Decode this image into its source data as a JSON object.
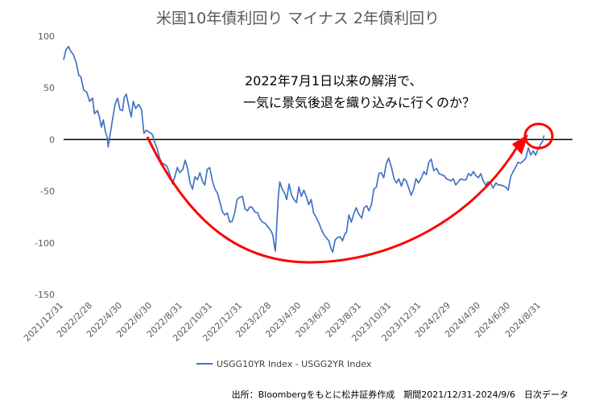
{
  "chart_data": {
    "type": "line",
    "title": "米国10年債利回り マイナス 2年債利回り",
    "xlabel": "",
    "ylabel": "",
    "ylim": [
      -150,
      100
    ],
    "y_ticks": [
      100,
      50,
      0,
      -50,
      -100,
      -150
    ],
    "x_range": [
      "2021/12/31",
      "2024/9/6"
    ],
    "x_tick_labels": [
      "2021/12/31",
      "2022/2/28",
      "2022/4/30",
      "2022/6/30",
      "2022/8/31",
      "2022/10/31",
      "2022/12/31",
      "2023/2/28",
      "2023/4/30",
      "2023/6/30",
      "2023/8/31",
      "2023/10/31",
      "2023/12/31",
      "2024/2/29",
      "2024/4/30",
      "2024/6/30",
      "2024/8/31"
    ],
    "grid": false,
    "legend_position": "bottom",
    "series": [
      {
        "name": "USGG10YR Index - USGG2YR Index",
        "color": "#4472C4",
        "points": [
          [
            "2021/12/31",
            77
          ],
          [
            "2022/1/5",
            87
          ],
          [
            "2022/1/10",
            90
          ],
          [
            "2022/1/14",
            86
          ],
          [
            "2022/1/20",
            82
          ],
          [
            "2022/1/26",
            74
          ],
          [
            "2022/1/31",
            62
          ],
          [
            "2022/2/4",
            61
          ],
          [
            "2022/2/10",
            48
          ],
          [
            "2022/2/16",
            46
          ],
          [
            "2022/2/22",
            37
          ],
          [
            "2022/2/28",
            40
          ],
          [
            "2022/3/4",
            25
          ],
          [
            "2022/3/10",
            28
          ],
          [
            "2022/3/14",
            22
          ],
          [
            "2022/3/18",
            12
          ],
          [
            "2022/3/22",
            19
          ],
          [
            "2022/3/26",
            8
          ],
          [
            "2022/3/30",
            2
          ],
          [
            "2022/4/1",
            -7
          ],
          [
            "2022/4/5",
            5
          ],
          [
            "2022/4/10",
            20
          ],
          [
            "2022/4/15",
            34
          ],
          [
            "2022/4/20",
            40
          ],
          [
            "2022/4/25",
            29
          ],
          [
            "2022/4/30",
            28
          ],
          [
            "2022/5/4",
            41
          ],
          [
            "2022/5/8",
            44
          ],
          [
            "2022/5/13",
            32
          ],
          [
            "2022/5/18",
            22
          ],
          [
            "2022/5/22",
            37
          ],
          [
            "2022/5/27",
            30
          ],
          [
            "2022/6/2",
            34
          ],
          [
            "2022/6/8",
            29
          ],
          [
            "2022/6/13",
            6
          ],
          [
            "2022/6/18",
            9
          ],
          [
            "2022/6/24",
            7
          ],
          [
            "2022/6/30",
            5
          ],
          [
            "2022/7/5",
            -3
          ],
          [
            "2022/7/10",
            -9
          ],
          [
            "2022/7/15",
            -18
          ],
          [
            "2022/7/20",
            -23
          ],
          [
            "2022/7/25",
            -24
          ],
          [
            "2022/7/30",
            -26
          ],
          [
            "2022/8/5",
            -34
          ],
          [
            "2022/8/10",
            -43
          ],
          [
            "2022/8/15",
            -36
          ],
          [
            "2022/8/20",
            -27
          ],
          [
            "2022/8/25",
            -32
          ],
          [
            "2022/8/31",
            -29
          ],
          [
            "2022/9/5",
            -20
          ],
          [
            "2022/9/10",
            -28
          ],
          [
            "2022/9/15",
            -42
          ],
          [
            "2022/9/20",
            -48
          ],
          [
            "2022/9/25",
            -36
          ],
          [
            "2022/9/30",
            -39
          ],
          [
            "2022/10/5",
            -32
          ],
          [
            "2022/10/10",
            -40
          ],
          [
            "2022/10/15",
            -44
          ],
          [
            "2022/10/20",
            -29
          ],
          [
            "2022/10/25",
            -27
          ],
          [
            "2022/10/31",
            -41
          ],
          [
            "2022/11/5",
            -48
          ],
          [
            "2022/11/10",
            -52
          ],
          [
            "2022/11/15",
            -61
          ],
          [
            "2022/11/20",
            -70
          ],
          [
            "2022/11/25",
            -73
          ],
          [
            "2022/11/30",
            -71
          ],
          [
            "2022/12/5",
            -80
          ],
          [
            "2022/12/10",
            -79
          ],
          [
            "2022/12/15",
            -71
          ],
          [
            "2022/12/20",
            -58
          ],
          [
            "2022/12/25",
            -56
          ],
          [
            "2022/12/31",
            -55
          ],
          [
            "2023/1/5",
            -67
          ],
          [
            "2023/1/10",
            -69
          ],
          [
            "2023/1/15",
            -65
          ],
          [
            "2023/1/20",
            -66
          ],
          [
            "2023/1/25",
            -70
          ],
          [
            "2023/1/31",
            -71
          ],
          [
            "2023/2/5",
            -77
          ],
          [
            "2023/2/10",
            -80
          ],
          [
            "2023/2/15",
            -81
          ],
          [
            "2023/2/20",
            -84
          ],
          [
            "2023/2/25",
            -87
          ],
          [
            "2023/2/28",
            -89
          ],
          [
            "2023/3/3",
            -93
          ],
          [
            "2023/3/6",
            -103
          ],
          [
            "2023/3/8",
            -108
          ],
          [
            "2023/3/10",
            -90
          ],
          [
            "2023/3/14",
            -55
          ],
          [
            "2023/3/17",
            -41
          ],
          [
            "2023/3/22",
            -48
          ],
          [
            "2023/3/27",
            -52
          ],
          [
            "2023/3/31",
            -58
          ],
          [
            "2023/4/5",
            -43
          ],
          [
            "2023/4/10",
            -54
          ],
          [
            "2023/4/15",
            -58
          ],
          [
            "2023/4/20",
            -61
          ],
          [
            "2023/4/25",
            -46
          ],
          [
            "2023/4/30",
            -55
          ],
          [
            "2023/5/5",
            -49
          ],
          [
            "2023/5/10",
            -55
          ],
          [
            "2023/5/15",
            -63
          ],
          [
            "2023/5/20",
            -58
          ],
          [
            "2023/5/25",
            -71
          ],
          [
            "2023/5/31",
            -76
          ],
          [
            "2023/6/5",
            -81
          ],
          [
            "2023/6/10",
            -87
          ],
          [
            "2023/6/15",
            -92
          ],
          [
            "2023/6/20",
            -95
          ],
          [
            "2023/6/25",
            -98
          ],
          [
            "2023/6/30",
            -106
          ],
          [
            "2023/7/3",
            -109
          ],
          [
            "2023/7/8",
            -97
          ],
          [
            "2023/7/13",
            -95
          ],
          [
            "2023/7/18",
            -94
          ],
          [
            "2023/7/23",
            -98
          ],
          [
            "2023/7/28",
            -91
          ],
          [
            "2023/7/31",
            -90
          ],
          [
            "2023/8/5",
            -73
          ],
          [
            "2023/8/10",
            -80
          ],
          [
            "2023/8/15",
            -72
          ],
          [
            "2023/8/20",
            -66
          ],
          [
            "2023/8/25",
            -72
          ],
          [
            "2023/8/31",
            -76
          ],
          [
            "2023/9/5",
            -66
          ],
          [
            "2023/9/10",
            -64
          ],
          [
            "2023/9/15",
            -69
          ],
          [
            "2023/9/20",
            -63
          ],
          [
            "2023/9/25",
            -48
          ],
          [
            "2023/9/30",
            -46
          ],
          [
            "2023/10/5",
            -33
          ],
          [
            "2023/10/10",
            -32
          ],
          [
            "2023/10/15",
            -37
          ],
          [
            "2023/10/20",
            -24
          ],
          [
            "2023/10/25",
            -18
          ],
          [
            "2023/10/31",
            -27
          ],
          [
            "2023/11/5",
            -38
          ],
          [
            "2023/11/10",
            -42
          ],
          [
            "2023/11/15",
            -38
          ],
          [
            "2023/11/20",
            -45
          ],
          [
            "2023/11/25",
            -38
          ],
          [
            "2023/11/30",
            -40
          ],
          [
            "2023/12/5",
            -47
          ],
          [
            "2023/12/10",
            -54
          ],
          [
            "2023/12/15",
            -48
          ],
          [
            "2023/12/20",
            -38
          ],
          [
            "2023/12/25",
            -42
          ],
          [
            "2023/12/31",
            -37
          ],
          [
            "2024/1/5",
            -31
          ],
          [
            "2024/1/10",
            -34
          ],
          [
            "2024/1/15",
            -22
          ],
          [
            "2024/1/20",
            -19
          ],
          [
            "2024/1/25",
            -30
          ],
          [
            "2024/1/31",
            -28
          ],
          [
            "2024/2/5",
            -33
          ],
          [
            "2024/2/10",
            -34
          ],
          [
            "2024/2/15",
            -35
          ],
          [
            "2024/2/20",
            -38
          ],
          [
            "2024/2/25",
            -39
          ],
          [
            "2024/2/29",
            -40
          ],
          [
            "2024/3/5",
            -38
          ],
          [
            "2024/3/10",
            -44
          ],
          [
            "2024/3/15",
            -41
          ],
          [
            "2024/3/20",
            -38
          ],
          [
            "2024/3/25",
            -39
          ],
          [
            "2024/3/31",
            -39
          ],
          [
            "2024/4/5",
            -33
          ],
          [
            "2024/4/10",
            -35
          ],
          [
            "2024/4/15",
            -31
          ],
          [
            "2024/4/20",
            -35
          ],
          [
            "2024/4/25",
            -37
          ],
          [
            "2024/4/30",
            -33
          ],
          [
            "2024/5/5",
            -40
          ],
          [
            "2024/5/10",
            -44
          ],
          [
            "2024/5/15",
            -41
          ],
          [
            "2024/5/20",
            -42
          ],
          [
            "2024/5/25",
            -47
          ],
          [
            "2024/5/31",
            -42
          ],
          [
            "2024/6/5",
            -44
          ],
          [
            "2024/6/10",
            -44
          ],
          [
            "2024/6/15",
            -45
          ],
          [
            "2024/6/20",
            -46
          ],
          [
            "2024/6/25",
            -49
          ],
          [
            "2024/6/30",
            -36
          ],
          [
            "2024/7/5",
            -31
          ],
          [
            "2024/7/10",
            -27
          ],
          [
            "2024/7/15",
            -22
          ],
          [
            "2024/7/20",
            -23
          ],
          [
            "2024/7/25",
            -21
          ],
          [
            "2024/7/31",
            -18
          ],
          [
            "2024/8/5",
            -8
          ],
          [
            "2024/8/10",
            -15
          ],
          [
            "2024/8/15",
            -11
          ],
          [
            "2024/8/20",
            -15
          ],
          [
            "2024/8/25",
            -9
          ],
          [
            "2024/8/31",
            -4
          ],
          [
            "2024/9/3",
            -2
          ],
          [
            "2024/9/6",
            4
          ]
        ]
      }
    ]
  },
  "annotation": {
    "line1": "2022年7月1日以来の解消で、",
    "line2": "一気に景気後退を織り込みに行くのか？",
    "color": "#FF0000"
  },
  "source_note": "出所：Bloombergをもとに松井証券作成　期間2021/12/31-2024/9/6　日次データ"
}
